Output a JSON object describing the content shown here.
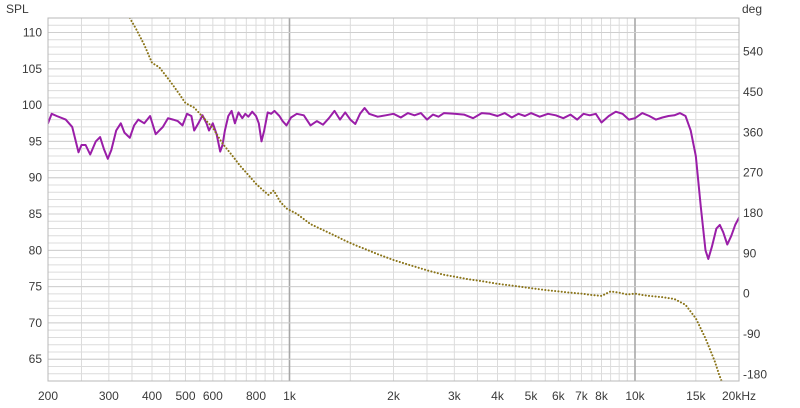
{
  "chart_data": {
    "type": "line",
    "x_scale": "log",
    "xlim": [
      200,
      20000
    ],
    "left_axis": {
      "label": "SPL",
      "ylim": [
        62,
        112
      ],
      "ticks": [
        65,
        70,
        75,
        80,
        85,
        90,
        95,
        100,
        105,
        110
      ]
    },
    "right_axis": {
      "label": "deg",
      "ylim": [
        -195,
        615
      ],
      "ticks": [
        -180,
        -90,
        0,
        90,
        180,
        270,
        360,
        450,
        540
      ]
    },
    "x_ticks": [
      {
        "value": 200,
        "label": "200"
      },
      {
        "value": 300,
        "label": "300"
      },
      {
        "value": 400,
        "label": "400"
      },
      {
        "value": 500,
        "label": "500"
      },
      {
        "value": 600,
        "label": "600"
      },
      {
        "value": 800,
        "label": "800"
      },
      {
        "value": 1000,
        "label": "1k"
      },
      {
        "value": 2000,
        "label": "2k"
      },
      {
        "value": 3000,
        "label": "3k"
      },
      {
        "value": 4000,
        "label": "4k"
      },
      {
        "value": 5000,
        "label": "5k"
      },
      {
        "value": 6000,
        "label": "6k"
      },
      {
        "value": 7000,
        "label": "7k"
      },
      {
        "value": 8000,
        "label": "8k"
      },
      {
        "value": 10000,
        "label": "10k"
      },
      {
        "value": 15000,
        "label": "15k"
      },
      {
        "value": 20000,
        "label": "20kHz"
      }
    ],
    "grid": true,
    "colors": {
      "spl": "#9a1ea8",
      "phase": "#8a7418",
      "grid": "#dcdcdc",
      "major_grid": "#a8a8a8"
    },
    "series": [
      {
        "axis": "left",
        "style": "solid",
        "points": [
          [
            200,
            97.5
          ],
          [
            205,
            98.8
          ],
          [
            212,
            98.5
          ],
          [
            225,
            98.0
          ],
          [
            235,
            97.0
          ],
          [
            245,
            93.5
          ],
          [
            250,
            94.5
          ],
          [
            257,
            94.5
          ],
          [
            265,
            93.2
          ],
          [
            275,
            95.0
          ],
          [
            283,
            95.6
          ],
          [
            290,
            94.0
          ],
          [
            298,
            92.6
          ],
          [
            305,
            93.8
          ],
          [
            315,
            96.5
          ],
          [
            325,
            97.5
          ],
          [
            333,
            96.2
          ],
          [
            345,
            95.5
          ],
          [
            355,
            97.2
          ],
          [
            365,
            98.0
          ],
          [
            380,
            97.5
          ],
          [
            395,
            98.5
          ],
          [
            410,
            96.0
          ],
          [
            430,
            97.0
          ],
          [
            445,
            98.2
          ],
          [
            460,
            98.0
          ],
          [
            475,
            97.8
          ],
          [
            490,
            97.2
          ],
          [
            505,
            98.8
          ],
          [
            520,
            98.5
          ],
          [
            530,
            96.5
          ],
          [
            545,
            97.5
          ],
          [
            560,
            98.6
          ],
          [
            575,
            97.5
          ],
          [
            585,
            96.5
          ],
          [
            600,
            97.5
          ],
          [
            615,
            96.0
          ],
          [
            630,
            93.6
          ],
          [
            640,
            94.5
          ],
          [
            650,
            96.5
          ],
          [
            665,
            98.5
          ],
          [
            680,
            99.2
          ],
          [
            695,
            97.5
          ],
          [
            712,
            99.0
          ],
          [
            730,
            98.2
          ],
          [
            745,
            98.8
          ],
          [
            760,
            98.4
          ],
          [
            780,
            99.1
          ],
          [
            800,
            98.5
          ],
          [
            815,
            97.5
          ],
          [
            830,
            95.0
          ],
          [
            845,
            96.5
          ],
          [
            865,
            99.0
          ],
          [
            885,
            98.8
          ],
          [
            905,
            99.2
          ],
          [
            935,
            98.5
          ],
          [
            955,
            97.8
          ],
          [
            980,
            97.2
          ],
          [
            1010,
            98.3
          ],
          [
            1050,
            98.8
          ],
          [
            1100,
            98.6
          ],
          [
            1150,
            97.2
          ],
          [
            1200,
            97.8
          ],
          [
            1250,
            97.3
          ],
          [
            1300,
            98.2
          ],
          [
            1350,
            99.2
          ],
          [
            1400,
            98.0
          ],
          [
            1450,
            99.0
          ],
          [
            1500,
            98.0
          ],
          [
            1550,
            97.4
          ],
          [
            1600,
            98.8
          ],
          [
            1650,
            99.6
          ],
          [
            1700,
            98.8
          ],
          [
            1800,
            98.4
          ],
          [
            1900,
            98.6
          ],
          [
            2000,
            98.8
          ],
          [
            2100,
            98.3
          ],
          [
            2200,
            98.9
          ],
          [
            2300,
            98.6
          ],
          [
            2400,
            98.9
          ],
          [
            2500,
            98.0
          ],
          [
            2600,
            98.7
          ],
          [
            2700,
            98.4
          ],
          [
            2800,
            98.9
          ],
          [
            3000,
            98.8
          ],
          [
            3200,
            98.7
          ],
          [
            3400,
            98.2
          ],
          [
            3600,
            98.9
          ],
          [
            3800,
            98.8
          ],
          [
            4000,
            98.5
          ],
          [
            4200,
            98.9
          ],
          [
            4400,
            98.3
          ],
          [
            4600,
            98.8
          ],
          [
            4800,
            98.5
          ],
          [
            5000,
            98.9
          ],
          [
            5300,
            98.4
          ],
          [
            5600,
            98.8
          ],
          [
            5900,
            98.6
          ],
          [
            6200,
            98.2
          ],
          [
            6500,
            98.7
          ],
          [
            6800,
            98.0
          ],
          [
            7100,
            98.8
          ],
          [
            7400,
            98.6
          ],
          [
            7700,
            98.8
          ],
          [
            8000,
            97.6
          ],
          [
            8400,
            98.5
          ],
          [
            8800,
            99.1
          ],
          [
            9200,
            98.8
          ],
          [
            9600,
            98.0
          ],
          [
            10000,
            98.2
          ],
          [
            10500,
            98.9
          ],
          [
            11000,
            98.5
          ],
          [
            11500,
            98.0
          ],
          [
            12000,
            98.3
          ],
          [
            12500,
            98.5
          ],
          [
            13000,
            98.6
          ],
          [
            13500,
            98.9
          ],
          [
            14000,
            98.5
          ],
          [
            14500,
            96.5
          ],
          [
            15000,
            93.0
          ],
          [
            15500,
            86.0
          ],
          [
            16000,
            80.0
          ],
          [
            16300,
            78.8
          ],
          [
            16700,
            80.5
          ],
          [
            17200,
            83.0
          ],
          [
            17600,
            83.5
          ],
          [
            18000,
            82.5
          ],
          [
            18500,
            80.8
          ],
          [
            19000,
            82.0
          ],
          [
            19500,
            83.5
          ],
          [
            20000,
            84.5
          ]
        ]
      },
      {
        "axis": "right",
        "style": "dotted",
        "points": [
          [
            345,
            615
          ],
          [
            360,
            590
          ],
          [
            380,
            555
          ],
          [
            400,
            515
          ],
          [
            420,
            505
          ],
          [
            440,
            485
          ],
          [
            460,
            465
          ],
          [
            480,
            445
          ],
          [
            500,
            425
          ],
          [
            530,
            415
          ],
          [
            560,
            395
          ],
          [
            600,
            370
          ],
          [
            640,
            335
          ],
          [
            680,
            310
          ],
          [
            720,
            285
          ],
          [
            760,
            265
          ],
          [
            800,
            245
          ],
          [
            840,
            230
          ],
          [
            870,
            220
          ],
          [
            900,
            230
          ],
          [
            940,
            205
          ],
          [
            980,
            190
          ],
          [
            1050,
            178
          ],
          [
            1150,
            155
          ],
          [
            1250,
            142
          ],
          [
            1350,
            130
          ],
          [
            1450,
            118
          ],
          [
            1550,
            108
          ],
          [
            1650,
            100
          ],
          [
            1800,
            88
          ],
          [
            2000,
            75
          ],
          [
            2200,
            65
          ],
          [
            2500,
            52
          ],
          [
            2800,
            42
          ],
          [
            3000,
            38
          ],
          [
            3300,
            32
          ],
          [
            3600,
            28
          ],
          [
            4000,
            22
          ],
          [
            4500,
            17
          ],
          [
            5000,
            12
          ],
          [
            5500,
            8
          ],
          [
            6000,
            5
          ],
          [
            6500,
            2
          ],
          [
            7000,
            0
          ],
          [
            7500,
            -3
          ],
          [
            8000,
            -5
          ],
          [
            8500,
            5
          ],
          [
            9000,
            2
          ],
          [
            9500,
            -2
          ],
          [
            10000,
            0
          ],
          [
            10500,
            -3
          ],
          [
            11000,
            -5
          ],
          [
            12000,
            -8
          ],
          [
            13000,
            -12
          ],
          [
            14000,
            -25
          ],
          [
            15000,
            -55
          ],
          [
            16000,
            -100
          ],
          [
            17000,
            -150
          ],
          [
            17500,
            -180
          ],
          [
            17800,
            -195
          ]
        ]
      }
    ]
  }
}
